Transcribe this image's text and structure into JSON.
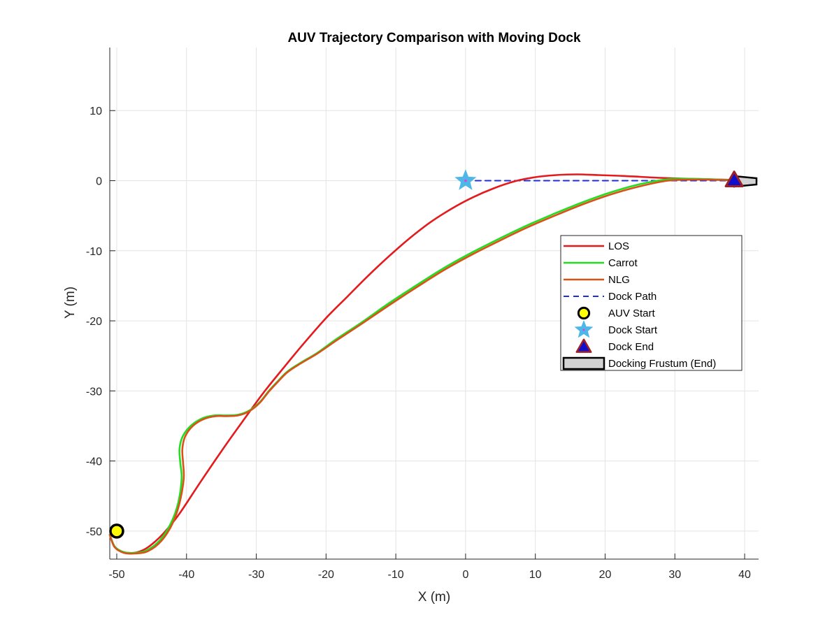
{
  "chart_data": {
    "type": "line",
    "title": "AUV Trajectory Comparison with Moving Dock",
    "xlabel": "X (m)",
    "ylabel": "Y (m)",
    "xlim": [
      -51,
      42
    ],
    "ylim": [
      -54,
      19
    ],
    "xticks": [
      -50,
      -40,
      -30,
      -20,
      -10,
      0,
      10,
      20,
      30,
      40
    ],
    "yticks": [
      -50,
      -40,
      -30,
      -20,
      -10,
      0,
      10
    ],
    "grid": true,
    "legend_position": "right",
    "series": [
      {
        "name": "LOS",
        "color": "#e41a1c",
        "style": "solid",
        "x": [
          -51,
          -50.3,
          -49,
          -47.5,
          -46,
          -44.5,
          -43,
          -41,
          -38,
          -35,
          -32,
          -29,
          -26,
          -23,
          -20,
          -17,
          -14,
          -11,
          -8,
          -5,
          -2,
          1,
          4,
          7,
          10,
          13,
          16,
          19,
          22,
          25,
          28,
          31,
          34,
          37,
          38.5
        ],
        "y": [
          -50.5,
          -52.2,
          -53.0,
          -53.1,
          -52.6,
          -51.5,
          -50.0,
          -47.5,
          -43.0,
          -38.6,
          -34.4,
          -30.3,
          -26.6,
          -23.0,
          -19.6,
          -16.6,
          -13.6,
          -10.8,
          -8.2,
          -5.9,
          -4.0,
          -2.4,
          -1.1,
          -0.1,
          0.5,
          0.8,
          0.9,
          0.8,
          0.7,
          0.55,
          0.4,
          0.3,
          0.22,
          0.15,
          0.12
        ]
      },
      {
        "name": "Carrot",
        "color": "#22dd22",
        "style": "solid",
        "x": [
          -51,
          -50.3,
          -49,
          -47.5,
          -45.8,
          -43.8,
          -42.2,
          -41.2,
          -40.7,
          -40.9,
          -41.0,
          -40.5,
          -39.3,
          -37.7,
          -36.0,
          -34.3,
          -32.6,
          -31.0,
          -29.5,
          -28.2,
          -27.0,
          -25.5,
          -23.5,
          -21.3,
          -18.5,
          -15,
          -11,
          -7,
          -3,
          1,
          5,
          9,
          13,
          17,
          21,
          25,
          29,
          33,
          36.5,
          38.5
        ],
        "y": [
          -50.5,
          -52.2,
          -53.0,
          -53.1,
          -52.8,
          -51.3,
          -48.8,
          -46.0,
          -42.5,
          -40.2,
          -38.2,
          -36.4,
          -34.9,
          -33.9,
          -33.5,
          -33.5,
          -33.4,
          -32.8,
          -31.6,
          -30.0,
          -28.7,
          -27.2,
          -25.9,
          -24.6,
          -22.6,
          -20.3,
          -17.5,
          -14.9,
          -12.4,
          -10.2,
          -8.2,
          -6.3,
          -4.6,
          -3.0,
          -1.6,
          -0.5,
          0.2,
          0.25,
          0.15,
          0.1
        ]
      },
      {
        "name": "NLG",
        "color": "#d95319",
        "style": "solid",
        "x": [
          -51,
          -50.3,
          -49,
          -47.5,
          -45.6,
          -43.6,
          -42.0,
          -41.0,
          -40.4,
          -40.5,
          -40.6,
          -40.2,
          -39.1,
          -37.5,
          -35.8,
          -34.2,
          -32.6,
          -31.0,
          -29.5,
          -28.2,
          -27.0,
          -25.5,
          -23.5,
          -21.3,
          -18.5,
          -15,
          -11,
          -7,
          -3,
          1,
          5,
          9,
          13,
          17,
          21,
          25,
          29,
          33,
          36.5,
          38.5
        ],
        "y": [
          -50.6,
          -52.3,
          -53.1,
          -53.2,
          -52.9,
          -51.4,
          -48.9,
          -46.0,
          -42.5,
          -40.2,
          -38.3,
          -36.5,
          -35.0,
          -34.0,
          -33.6,
          -33.6,
          -33.5,
          -32.9,
          -31.7,
          -30.1,
          -28.8,
          -27.3,
          -26.0,
          -24.7,
          -22.8,
          -20.5,
          -17.8,
          -15.2,
          -12.7,
          -10.5,
          -8.5,
          -6.6,
          -4.9,
          -3.3,
          -1.9,
          -0.8,
          0.0,
          0.15,
          0.1,
          0.05
        ]
      },
      {
        "name": "Dock Path",
        "color": "#1f2fd6",
        "style": "dashed",
        "x": [
          0,
          38.5
        ],
        "y": [
          0,
          0
        ]
      }
    ],
    "markers": [
      {
        "name": "AUV Start",
        "shape": "circle",
        "x": -50,
        "y": -50,
        "fill": "#ffff00",
        "edge": "#000000"
      },
      {
        "name": "Dock Start",
        "shape": "star",
        "x": 0,
        "y": 0,
        "fill": "#4db8e8",
        "edge": "#4db8e8",
        "center": "#e040e0"
      },
      {
        "name": "Dock End",
        "shape": "triangle",
        "x": 38.5,
        "y": 0.1,
        "fill": "#1010cc",
        "edge": "#9b2226"
      },
      {
        "name": "Docking Frustum (End)",
        "shape": "frustum",
        "x": [
          38.5,
          41.7
        ],
        "y": [
          -0.9,
          1.0
        ],
        "fill": "#d3d3d3",
        "edge": "#000000"
      }
    ],
    "legend": [
      "LOS",
      "Carrot",
      "NLG",
      "Dock Path",
      "AUV Start",
      "Dock Start",
      "Dock End",
      "Docking Frustum (End)"
    ]
  }
}
